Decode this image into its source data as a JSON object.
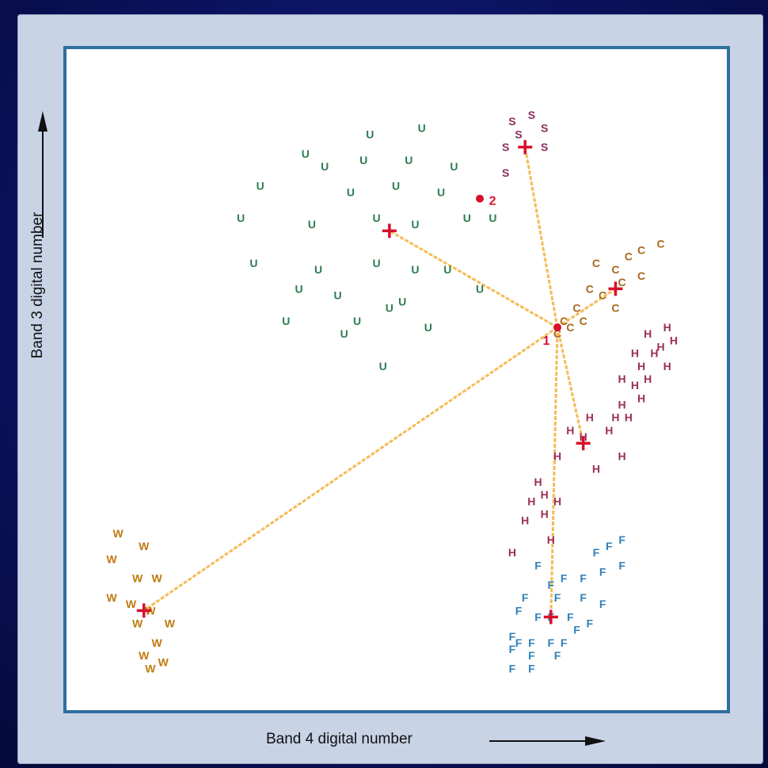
{
  "chart_data": {
    "type": "scatter",
    "xlabel": "Band 4 digital number",
    "ylabel": "Band 3 digital number",
    "xlim": [
      0,
      100
    ],
    "ylim": [
      0,
      100
    ],
    "grid": false,
    "series": [
      {
        "name": "U",
        "color": "#2e7d4f",
        "points": [
          [
            46,
            88
          ],
          [
            54,
            89
          ],
          [
            36,
            85
          ],
          [
            39,
            83
          ],
          [
            45,
            84
          ],
          [
            52,
            84
          ],
          [
            59,
            83
          ],
          [
            29,
            80
          ],
          [
            43,
            79
          ],
          [
            50,
            80
          ],
          [
            57,
            79
          ],
          [
            26,
            75
          ],
          [
            37,
            74
          ],
          [
            47,
            75
          ],
          [
            53,
            74
          ],
          [
            61,
            75
          ],
          [
            65,
            75
          ],
          [
            28,
            68
          ],
          [
            38,
            67
          ],
          [
            47,
            68
          ],
          [
            53,
            67
          ],
          [
            58,
            67
          ],
          [
            63,
            64
          ],
          [
            35,
            64
          ],
          [
            41,
            63
          ],
          [
            51,
            62
          ],
          [
            33,
            59
          ],
          [
            44,
            59
          ],
          [
            49,
            61
          ],
          [
            42,
            57
          ],
          [
            55,
            58
          ],
          [
            48,
            52
          ]
        ],
        "centroid": [
          49,
          73
        ]
      },
      {
        "name": "S",
        "color": "#8a2e5c",
        "points": [
          [
            68,
            90
          ],
          [
            71,
            91
          ],
          [
            73,
            89
          ],
          [
            69,
            88
          ],
          [
            67,
            86
          ],
          [
            73,
            86
          ],
          [
            67,
            82
          ]
        ],
        "centroid": [
          70,
          86
        ]
      },
      {
        "name": "C",
        "color": "#a8671d",
        "points": [
          [
            91,
            71
          ],
          [
            88,
            70
          ],
          [
            86,
            69
          ],
          [
            81,
            68
          ],
          [
            84,
            67
          ],
          [
            88,
            66
          ],
          [
            85,
            65
          ],
          [
            80,
            64
          ],
          [
            82,
            63
          ],
          [
            84,
            61
          ],
          [
            78,
            61
          ],
          [
            79,
            59
          ],
          [
            76,
            59
          ],
          [
            77,
            58
          ],
          [
            75,
            57
          ]
        ],
        "centroid": [
          84,
          64
        ]
      },
      {
        "name": "H",
        "color": "#9a2f5a",
        "points": [
          [
            92,
            58
          ],
          [
            89,
            57
          ],
          [
            93,
            56
          ],
          [
            91,
            55
          ],
          [
            87,
            54
          ],
          [
            90,
            54
          ],
          [
            88,
            52
          ],
          [
            92,
            52
          ],
          [
            85,
            50
          ],
          [
            89,
            50
          ],
          [
            87,
            49
          ],
          [
            88,
            47
          ],
          [
            85,
            46
          ],
          [
            80,
            44
          ],
          [
            84,
            44
          ],
          [
            86,
            44
          ],
          [
            77,
            42
          ],
          [
            83,
            42
          ],
          [
            79,
            41
          ],
          [
            85,
            38
          ],
          [
            75,
            38
          ],
          [
            81,
            36
          ],
          [
            72,
            34
          ],
          [
            73,
            32
          ],
          [
            71,
            31
          ],
          [
            75,
            31
          ],
          [
            73,
            29
          ],
          [
            70,
            28
          ],
          [
            74,
            25
          ],
          [
            68,
            23
          ]
        ],
        "centroid": [
          79,
          40
        ]
      },
      {
        "name": "F",
        "color": "#2f7fb8",
        "points": [
          [
            85,
            25
          ],
          [
            83,
            24
          ],
          [
            81,
            23
          ],
          [
            85,
            21
          ],
          [
            82,
            20
          ],
          [
            72,
            21
          ],
          [
            79,
            19
          ],
          [
            76,
            19
          ],
          [
            74,
            18
          ],
          [
            70,
            16
          ],
          [
            75,
            16
          ],
          [
            79,
            16
          ],
          [
            82,
            15
          ],
          [
            69,
            14
          ],
          [
            72,
            13
          ],
          [
            74,
            13
          ],
          [
            77,
            13
          ],
          [
            80,
            12
          ],
          [
            78,
            11
          ],
          [
            68,
            10
          ],
          [
            69,
            9
          ],
          [
            71,
            9
          ],
          [
            74,
            9
          ],
          [
            76,
            9
          ],
          [
            68,
            8
          ],
          [
            71,
            7
          ],
          [
            75,
            7
          ],
          [
            68,
            5
          ],
          [
            71,
            5
          ]
        ],
        "centroid": [
          74,
          13
        ]
      },
      {
        "name": "W",
        "color": "#c07a0f",
        "points": [
          [
            7,
            26
          ],
          [
            11,
            24
          ],
          [
            6,
            22
          ],
          [
            10,
            19
          ],
          [
            13,
            19
          ],
          [
            6,
            16
          ],
          [
            9,
            15
          ],
          [
            12,
            14
          ],
          [
            10,
            12
          ],
          [
            15,
            12
          ],
          [
            13,
            9
          ],
          [
            11,
            7
          ],
          [
            14,
            6
          ],
          [
            12,
            5
          ]
        ],
        "centroid": [
          11,
          14
        ]
      }
    ],
    "unknown_pixels": [
      {
        "label": "1",
        "x": 75,
        "y": 58
      },
      {
        "label": "2",
        "x": 63,
        "y": 78
      }
    ],
    "distance_lines_from": "1"
  }
}
